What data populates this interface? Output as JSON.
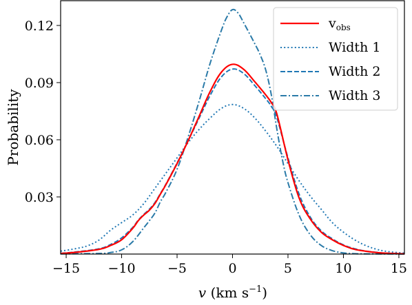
{
  "chart_data": {
    "type": "line",
    "title": "",
    "xlabel": "v (km s−1)",
    "xlabel_parts": {
      "var": "v",
      "unit": " (km s",
      "exp": "−1",
      "close": ")"
    },
    "ylabel": "Probability",
    "xlim": [
      -15.5,
      15.5
    ],
    "ylim": [
      0,
      0.133
    ],
    "xticks": [
      -15,
      -10,
      -5,
      0,
      5,
      10,
      15
    ],
    "xtick_labels": [
      "−15",
      "−10",
      "−5",
      "0",
      "5",
      "10",
      "15"
    ],
    "yticks": [
      0.03,
      0.06,
      0.09,
      0.12
    ],
    "ytick_labels": [
      "0.03",
      "0.06",
      "0.09",
      "0.12"
    ],
    "grid": false,
    "legend_position": "top-right",
    "series": [
      {
        "key": "v_obs",
        "name": "v_obs",
        "name_main": "v",
        "name_sub": "obs",
        "color": "#ff0000",
        "style": "solid",
        "x": [
          -15.5,
          -14,
          -12,
          -11,
          -10,
          -9,
          -8.5,
          -8,
          -7.5,
          -7,
          -6.5,
          -6,
          -5,
          -4,
          -3,
          -2,
          -1,
          0,
          1,
          2,
          3,
          3.5,
          4,
          5,
          6,
          7,
          8,
          9,
          10,
          11,
          12,
          13,
          14,
          15.5
        ],
        "y": [
          0.0003,
          0.001,
          0.0025,
          0.0045,
          0.0075,
          0.0135,
          0.0175,
          0.0205,
          0.023,
          0.0265,
          0.0315,
          0.0365,
          0.0475,
          0.0595,
          0.0725,
          0.0855,
          0.0955,
          0.0996,
          0.097,
          0.0905,
          0.0835,
          0.0795,
          0.0735,
          0.0495,
          0.0295,
          0.0185,
          0.0115,
          0.0075,
          0.0045,
          0.0025,
          0.0015,
          0.0008,
          0.0004,
          0.0001
        ]
      },
      {
        "key": "width1",
        "name": "Width 1",
        "color": "#1f77b4",
        "style": "dotted",
        "x": [
          -15.5,
          -14,
          -13,
          -12,
          -11,
          -10,
          -9,
          -8,
          -7,
          -6,
          -5,
          -4,
          -3,
          -2,
          -1,
          0,
          1,
          2,
          3,
          4,
          5,
          6,
          7,
          8,
          9,
          10,
          11,
          12,
          13,
          14,
          15.5
        ],
        "y": [
          0.0015,
          0.003,
          0.0045,
          0.0075,
          0.0125,
          0.0165,
          0.0205,
          0.0265,
          0.0345,
          0.0425,
          0.0505,
          0.0585,
          0.0655,
          0.0715,
          0.0765,
          0.0785,
          0.0765,
          0.0715,
          0.0645,
          0.0565,
          0.0475,
          0.0385,
          0.0305,
          0.0235,
          0.0165,
          0.0115,
          0.0075,
          0.0045,
          0.0025,
          0.0013,
          0.0005
        ]
      },
      {
        "key": "width2",
        "name": "Width 2",
        "color": "#1f77b4",
        "style": "dashed",
        "x": [
          -15.5,
          -14,
          -12,
          -11,
          -10,
          -9,
          -8.5,
          -8,
          -7.5,
          -7,
          -6.5,
          -6,
          -5,
          -4,
          -3,
          -2,
          -1,
          0,
          1,
          2,
          3,
          3.5,
          4,
          5,
          6,
          7,
          8,
          9,
          10,
          11,
          12,
          13,
          14,
          15.5
        ],
        "y": [
          0.0004,
          0.0012,
          0.0028,
          0.005,
          0.0085,
          0.014,
          0.0178,
          0.0208,
          0.0235,
          0.027,
          0.0318,
          0.0368,
          0.0478,
          0.0595,
          0.0715,
          0.0835,
          0.093,
          0.0971,
          0.0948,
          0.0885,
          0.0815,
          0.0775,
          0.0715,
          0.0505,
          0.0315,
          0.0195,
          0.0122,
          0.008,
          0.0048,
          0.0028,
          0.0016,
          0.0009,
          0.0004,
          0.0001
        ]
      },
      {
        "key": "width3",
        "name": "Width 3",
        "color": "#2a7aa8",
        "style": "dashdot",
        "x": [
          -15.5,
          -12,
          -11,
          -10,
          -9,
          -8,
          -7.5,
          -7,
          -6.5,
          -6,
          -5,
          -4,
          -3,
          -2,
          -1,
          -0.5,
          0,
          0.5,
          1,
          2,
          2.5,
          3,
          3.5,
          4,
          4.5,
          5,
          6,
          7,
          8,
          9,
          10,
          11,
          12,
          15.5
        ],
        "y": [
          0.0001,
          0.0003,
          0.0008,
          0.0022,
          0.0065,
          0.0138,
          0.0175,
          0.0215,
          0.0275,
          0.0325,
          0.0445,
          0.0615,
          0.0805,
          0.1005,
          0.1175,
          0.1245,
          0.1283,
          0.1265,
          0.1215,
          0.1105,
          0.1045,
          0.0965,
          0.0835,
          0.0655,
          0.0495,
          0.0375,
          0.0205,
          0.0102,
          0.0045,
          0.0018,
          0.0006,
          0.0002,
          0.0001,
          0.0
        ]
      }
    ]
  }
}
